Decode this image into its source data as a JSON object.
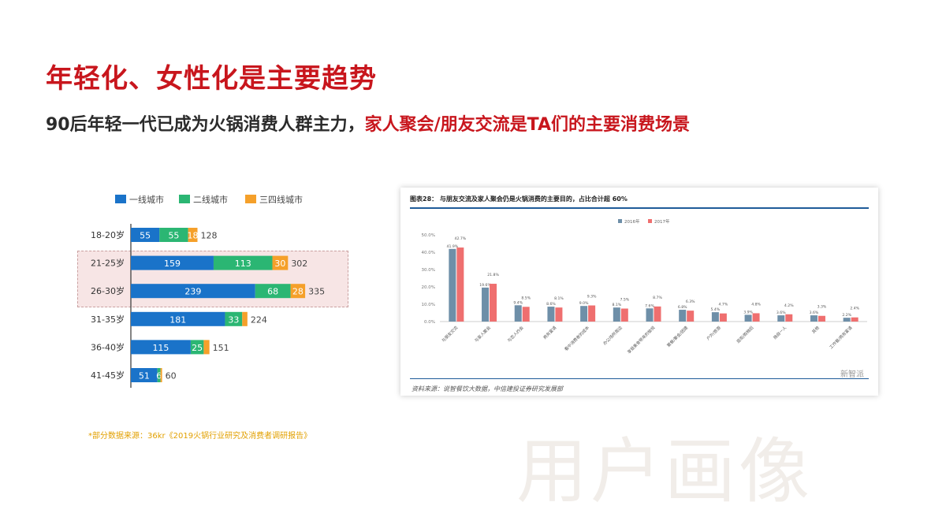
{
  "slide": {
    "title": "年轻化、女性化是主要趋势",
    "subtitle_main": "90后年轻一代已成为火锅消费人群主力，",
    "subtitle_highlight": "家人聚会/朋友交流是TA们的主要消费场景",
    "watermark": "用户画像",
    "source_note": "*部分数据来源：36kr《2019火锅行业研究及消费者调研报告》"
  },
  "colors": {
    "tier1": "#1a73c9",
    "tier2": "#2bb673",
    "tier3": "#f5a02a",
    "red": "#c8161d",
    "s2016": "#6e8fa8",
    "s2017": "#ef6f6f"
  },
  "chart_data": [
    {
      "type": "bar",
      "orientation": "horizontal",
      "stacked": true,
      "legend": [
        "一线城市",
        "二线城市",
        "三四线城市"
      ],
      "categories": [
        "18-20岁",
        "21-25岁",
        "26-30岁",
        "31-35岁",
        "36-40岁",
        "41-45岁"
      ],
      "series": [
        {
          "name": "一线城市",
          "values": [
            55,
            159,
            239,
            181,
            115,
            51
          ]
        },
        {
          "name": "二线城市",
          "values": [
            55,
            113,
            68,
            33,
            25,
            6
          ]
        },
        {
          "name": "三四线城市",
          "values": [
            18,
            30,
            28,
            10,
            11,
            3
          ]
        }
      ],
      "labels": {
        "tier1": [
          "55",
          "159",
          "239",
          "181",
          "115",
          "51"
        ],
        "tier2": [
          "55",
          "113",
          "68",
          "33",
          "25",
          "6"
        ],
        "tier3": [
          "18",
          "30",
          "28",
          "",
          "",
          ""
        ]
      },
      "totals": [
        128,
        302,
        335,
        224,
        151,
        60
      ],
      "highlighted_rows": [
        "21-25岁",
        "26-30岁"
      ]
    },
    {
      "type": "bar",
      "title": "图表28：   与朋友交流及家人聚会仍是火锅消费的主要目的，占比合计超 60%",
      "source": "资料来源：说智餐饮大数据，中信建投证券研究发展部",
      "legend": [
        "2016年",
        "2017年"
      ],
      "yticks": [
        "0.0%",
        "10.0%",
        "20.0%",
        "30.0%",
        "40.0%",
        "50.0%"
      ],
      "ylim": [
        0,
        50
      ],
      "categories": [
        "与朋友交流",
        "与家人聚会",
        "与恋人约会",
        "商务宴请",
        "看中消费者的成本",
        "办公场所周边",
        "享受美食带来的愉悦",
        "聚餐/聚会/团建",
        "户外/旅游",
        "逛街/购物后",
        "独自一人",
        "其他",
        "工作餐/商务宴请"
      ],
      "series": [
        {
          "name": "2016年",
          "values": [
            41.9,
            19.6,
            9.4,
            8.6,
            9.0,
            8.1,
            7.6,
            6.8,
            5.4,
            3.9,
            3.6,
            3.6,
            2.2
          ]
        },
        {
          "name": "2017年",
          "values": [
            42.7,
            21.8,
            8.5,
            8.1,
            9.3,
            7.5,
            8.7,
            6.3,
            4.7,
            4.8,
            4.2,
            3.3,
            2.4
          ]
        }
      ],
      "value_labels": {
        "s2016": [
          "41.9%",
          "19.6%",
          "9.4%",
          "8.6%",
          "9.0%",
          "8.1%",
          "7.6%",
          "6.8%",
          "5.4%",
          "3.9%",
          "3.6%",
          "3.6%",
          "2.2%"
        ],
        "s2017": [
          "42.7%",
          "21.8%",
          "8.5%",
          "8.1%",
          "9.3%",
          "7.5%",
          "8.7%",
          "6.3%",
          "4.7%",
          "4.8%",
          "4.2%",
          "3.3%",
          "2.4%"
        ]
      },
      "watermark_text": "新智派"
    }
  ]
}
